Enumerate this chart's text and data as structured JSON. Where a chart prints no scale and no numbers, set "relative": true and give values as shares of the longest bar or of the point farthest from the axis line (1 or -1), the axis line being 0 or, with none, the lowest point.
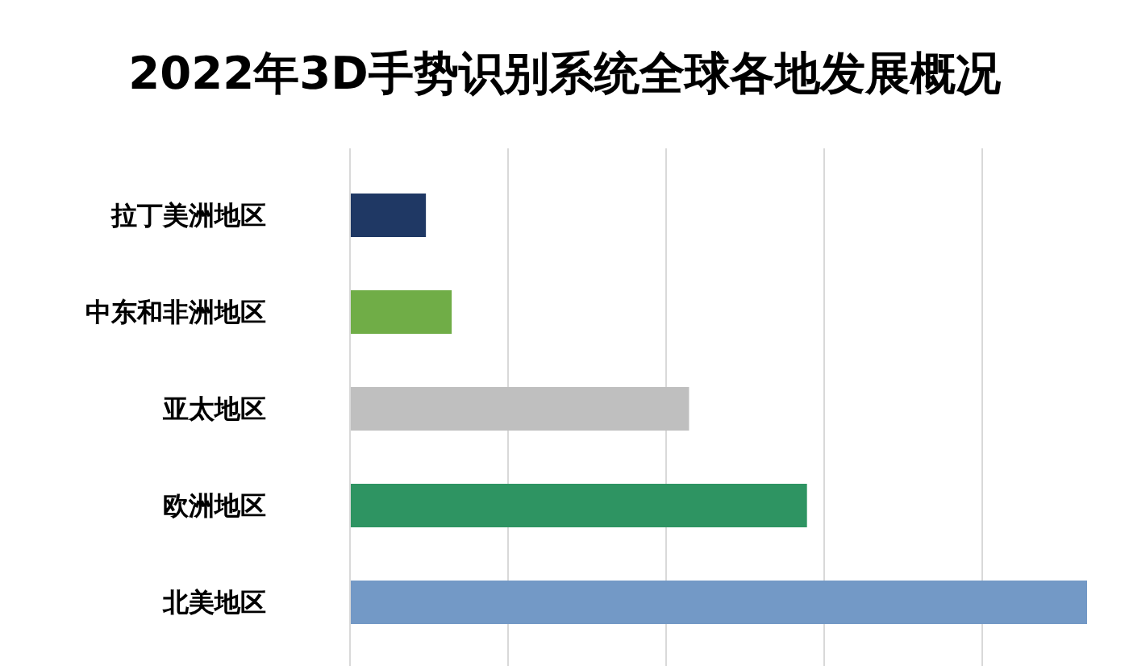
{
  "chart_data": {
    "type": "bar",
    "title": "2022年3D手势识别系统全球各地发展概况",
    "orientation": "horizontal",
    "relative": true,
    "grid": "x",
    "categories": [
      "拉丁美洲地区",
      "中东和非洲地区",
      "亚太地区",
      "欧洲地区",
      "北美地区"
    ],
    "values": [
      0.103,
      0.138,
      0.46,
      0.62,
      1.0
    ],
    "colors": [
      "#1f3864",
      "#70ad47",
      "#bfbfbf",
      "#2e9462",
      "#7399c6"
    ]
  }
}
